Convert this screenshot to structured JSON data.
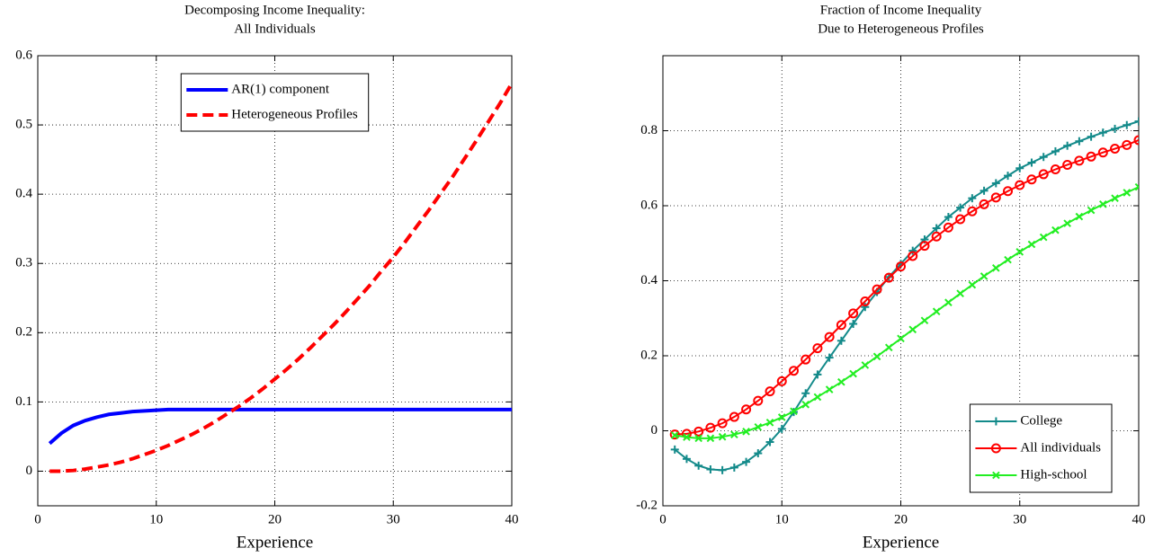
{
  "chart_data": [
    {
      "type": "line",
      "title": [
        "Decomposing Income Inequality:",
        "All Individuals"
      ],
      "xlabel": "Experience",
      "x": [
        1,
        2,
        3,
        4,
        5,
        6,
        7,
        8,
        9,
        10,
        11,
        12,
        13,
        14,
        15,
        16,
        17,
        18,
        19,
        20,
        21,
        22,
        23,
        24,
        25,
        26,
        27,
        28,
        29,
        30,
        31,
        32,
        33,
        34,
        35,
        36,
        37,
        38,
        39,
        40
      ],
      "xlim": [
        0,
        40
      ],
      "xticks": [
        0,
        10,
        20,
        30,
        40
      ],
      "ylim": [
        -0.05,
        0.6
      ],
      "yticks": [
        0,
        0.1,
        0.2,
        0.3,
        0.4,
        0.5,
        0.6
      ],
      "grid": true,
      "legend": "upper center",
      "series": [
        {
          "name": "AR(1) component",
          "color": "#0000ff",
          "linestyle": "solid",
          "values": [
            0.04,
            0.055,
            0.066,
            0.073,
            0.078,
            0.082,
            0.084,
            0.086,
            0.087,
            0.088,
            0.089,
            0.089,
            0.089,
            0.089,
            0.089,
            0.089,
            0.089,
            0.089,
            0.089,
            0.089,
            0.089,
            0.089,
            0.089,
            0.089,
            0.089,
            0.089,
            0.089,
            0.089,
            0.089,
            0.089,
            0.089,
            0.089,
            0.089,
            0.089,
            0.089,
            0.089,
            0.089,
            0.089,
            0.089,
            0.089
          ]
        },
        {
          "name": "Heterogeneous Profiles",
          "color": "#ff0000",
          "linestyle": "dashed",
          "values": [
            0,
            0,
            0.001,
            0.003,
            0.006,
            0.009,
            0.013,
            0.018,
            0.024,
            0.03,
            0.037,
            0.045,
            0.053,
            0.062,
            0.072,
            0.083,
            0.094,
            0.106,
            0.119,
            0.133,
            0.147,
            0.162,
            0.178,
            0.195,
            0.212,
            0.23,
            0.249,
            0.268,
            0.289,
            0.309,
            0.331,
            0.354,
            0.377,
            0.401,
            0.425,
            0.451,
            0.477,
            0.504,
            0.531,
            0.56
          ]
        }
      ]
    },
    {
      "type": "line",
      "title": [
        "Fraction of Income Inequality",
        "Due to Heterogeneous Profiles"
      ],
      "xlabel": "Experience",
      "x": [
        1,
        2,
        3,
        4,
        5,
        6,
        7,
        8,
        9,
        10,
        11,
        12,
        13,
        14,
        15,
        16,
        17,
        18,
        19,
        20,
        21,
        22,
        23,
        24,
        25,
        26,
        27,
        28,
        29,
        30,
        31,
        32,
        33,
        34,
        35,
        36,
        37,
        38,
        39,
        40
      ],
      "xlim": [
        0,
        40
      ],
      "xticks": [
        0,
        10,
        20,
        30,
        40
      ],
      "ylim": [
        -0.2,
        1.0
      ],
      "yticks": [
        -0.2,
        0,
        0.2,
        0.4,
        0.6,
        0.8
      ],
      "grid": true,
      "legend": "lower right",
      "series": [
        {
          "name": "College",
          "color": "#138a8a",
          "linestyle": "solid",
          "marker": "+",
          "values": [
            -0.05,
            -0.075,
            -0.093,
            -0.103,
            -0.105,
            -0.098,
            -0.083,
            -0.06,
            -0.03,
            0.005,
            0.05,
            0.1,
            0.15,
            0.195,
            0.24,
            0.285,
            0.33,
            0.37,
            0.41,
            0.445,
            0.48,
            0.51,
            0.54,
            0.57,
            0.595,
            0.62,
            0.64,
            0.66,
            0.68,
            0.7,
            0.715,
            0.73,
            0.745,
            0.76,
            0.772,
            0.784,
            0.795,
            0.805,
            0.815,
            0.825
          ]
        },
        {
          "name": "All individuals",
          "color": "#ff0000",
          "linestyle": "solid",
          "marker": "o",
          "values": [
            -0.01,
            -0.008,
            -0.002,
            0.008,
            0.02,
            0.037,
            0.057,
            0.08,
            0.105,
            0.132,
            0.16,
            0.19,
            0.22,
            0.25,
            0.282,
            0.313,
            0.345,
            0.377,
            0.408,
            0.438,
            0.466,
            0.493,
            0.518,
            0.542,
            0.564,
            0.585,
            0.604,
            0.622,
            0.639,
            0.655,
            0.67,
            0.684,
            0.697,
            0.709,
            0.72,
            0.731,
            0.742,
            0.752,
            0.762,
            0.775
          ]
        },
        {
          "name": "High-school",
          "color": "#22ee22",
          "linestyle": "solid",
          "marker": "x",
          "values": [
            -0.012,
            -0.017,
            -0.02,
            -0.02,
            -0.016,
            -0.01,
            -0.002,
            0.01,
            0.022,
            0.036,
            0.052,
            0.07,
            0.09,
            0.11,
            0.13,
            0.152,
            0.175,
            0.198,
            0.222,
            0.246,
            0.27,
            0.294,
            0.318,
            0.342,
            0.366,
            0.389,
            0.412,
            0.434,
            0.456,
            0.477,
            0.497,
            0.516,
            0.535,
            0.553,
            0.571,
            0.588,
            0.604,
            0.62,
            0.635,
            0.65
          ]
        }
      ]
    }
  ]
}
